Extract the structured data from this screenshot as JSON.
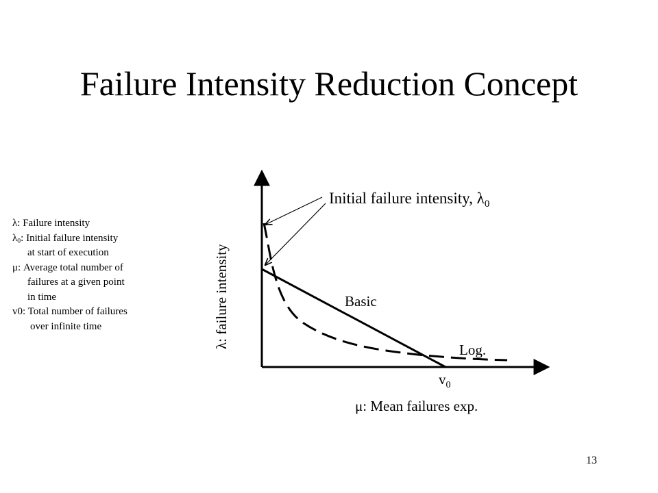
{
  "slide": {
    "title": "Failure Intensity Reduction Concept",
    "page_number": "13"
  },
  "legend": {
    "lambda_line": "λ: Failure intensity",
    "lambda0_symbol": "λ",
    "lambda0_sub": "0",
    "lambda0_text": ": Initial failure intensity",
    "lambda0_cont": "at start of execution",
    "mu_line": "μ: Average total number of",
    "mu_cont1": "failures at a given point",
    "mu_cont2": "in time",
    "v0_line": "v0: Total number of failures",
    "v0_cont": "over infinite time"
  },
  "diagram": {
    "y_axis_label": "λ: failure intensity",
    "x_axis_label": "μ: Mean failures exp.",
    "initial_label": "Initial failure intensity, λ",
    "initial_label_sub": "0",
    "basic_label": "Basic",
    "log_label": "Log.",
    "v0_label": "v",
    "v0_sub": "0"
  }
}
